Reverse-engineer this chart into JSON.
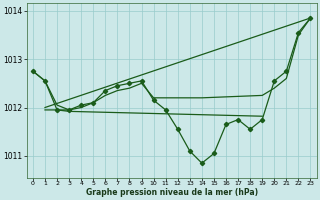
{
  "xlabel": "Graphe pression niveau de la mer (hPa)",
  "background_color": "#cce8e8",
  "grid_color": "#99cccc",
  "line_color": "#1a5c1a",
  "xlim": [
    -0.5,
    23.5
  ],
  "ylim": [
    1010.55,
    1014.15
  ],
  "yticks": [
    1011,
    1012,
    1013,
    1014
  ],
  "xticks": [
    0,
    1,
    2,
    3,
    4,
    5,
    6,
    7,
    8,
    9,
    10,
    11,
    12,
    13,
    14,
    15,
    16,
    17,
    18,
    19,
    20,
    21,
    22,
    23
  ],
  "series": [
    {
      "x": [
        0,
        1,
        2,
        3,
        4,
        5,
        6,
        7,
        8,
        9,
        10,
        11,
        12,
        13,
        14,
        15,
        16,
        17,
        18,
        19,
        20,
        21,
        22,
        23
      ],
      "y": [
        1012.75,
        1012.55,
        1011.95,
        1011.95,
        1012.05,
        1012.1,
        1012.35,
        1012.45,
        1012.5,
        1012.55,
        1012.15,
        1011.95,
        1011.55,
        1011.1,
        1010.85,
        1011.05,
        1011.65,
        1011.75,
        1011.55,
        1011.75,
        1012.55,
        1012.75,
        1013.55,
        1013.85
      ],
      "markers": true,
      "lw": 0.9
    },
    {
      "x": [
        0,
        1,
        2,
        3,
        4,
        5,
        6,
        7,
        8,
        9,
        10,
        12,
        14,
        19,
        20,
        21,
        22,
        23
      ],
      "y": [
        1012.75,
        1012.55,
        1012.05,
        1011.95,
        1012.0,
        1012.1,
        1012.25,
        1012.35,
        1012.4,
        1012.5,
        1012.2,
        1012.2,
        1012.2,
        1012.25,
        1012.4,
        1012.6,
        1013.5,
        1013.85
      ],
      "markers": false,
      "lw": 0.9
    },
    {
      "x": [
        1,
        23
      ],
      "y": [
        1012.0,
        1013.85
      ],
      "markers": false,
      "lw": 0.9
    },
    {
      "x": [
        1,
        2,
        3,
        19
      ],
      "y": [
        1011.95,
        1011.95,
        1011.92,
        1011.82
      ],
      "markers": false,
      "lw": 0.9
    }
  ]
}
